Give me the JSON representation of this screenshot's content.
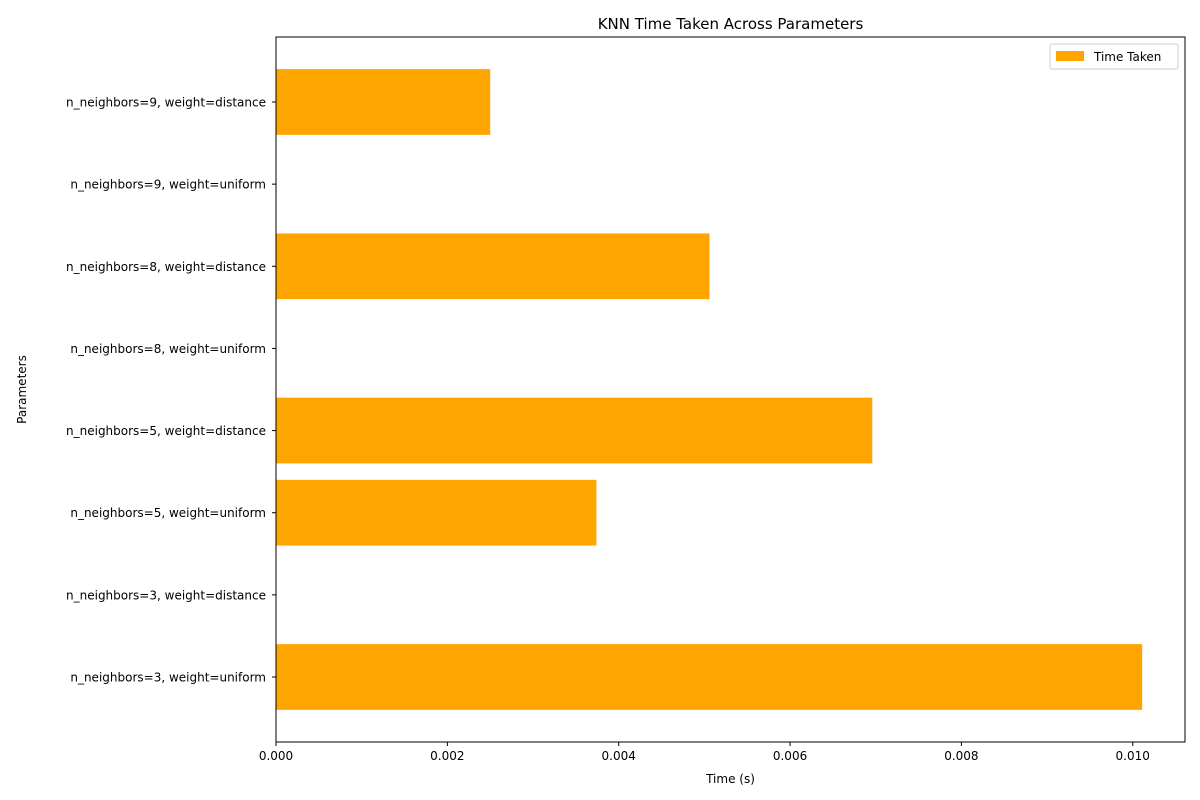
{
  "chart_data": {
    "type": "bar",
    "orientation": "horizontal",
    "title": "KNN Time Taken Across Parameters",
    "xlabel": "Time (s)",
    "ylabel": "Parameters",
    "xlim": [
      0,
      0.01061
    ],
    "xticks": [
      0.0,
      0.002,
      0.004,
      0.006,
      0.008,
      0.01
    ],
    "xtick_labels": [
      "0.000",
      "0.002",
      "0.004",
      "0.006",
      "0.008",
      "0.010"
    ],
    "grid": false,
    "legend_position": "top-right",
    "categories": [
      "n_neighbors=3, weight=uniform",
      "n_neighbors=3, weight=distance",
      "n_neighbors=5, weight=uniform",
      "n_neighbors=5, weight=distance",
      "n_neighbors=8, weight=uniform",
      "n_neighbors=8, weight=distance",
      "n_neighbors=9, weight=uniform",
      "n_neighbors=9, weight=distance"
    ],
    "series": [
      {
        "name": "Time Taken",
        "color": "#ffa500",
        "values": [
          0.01011,
          0.0,
          0.00374,
          0.00696,
          0.0,
          0.00506,
          0.0,
          0.0025
        ]
      }
    ]
  }
}
